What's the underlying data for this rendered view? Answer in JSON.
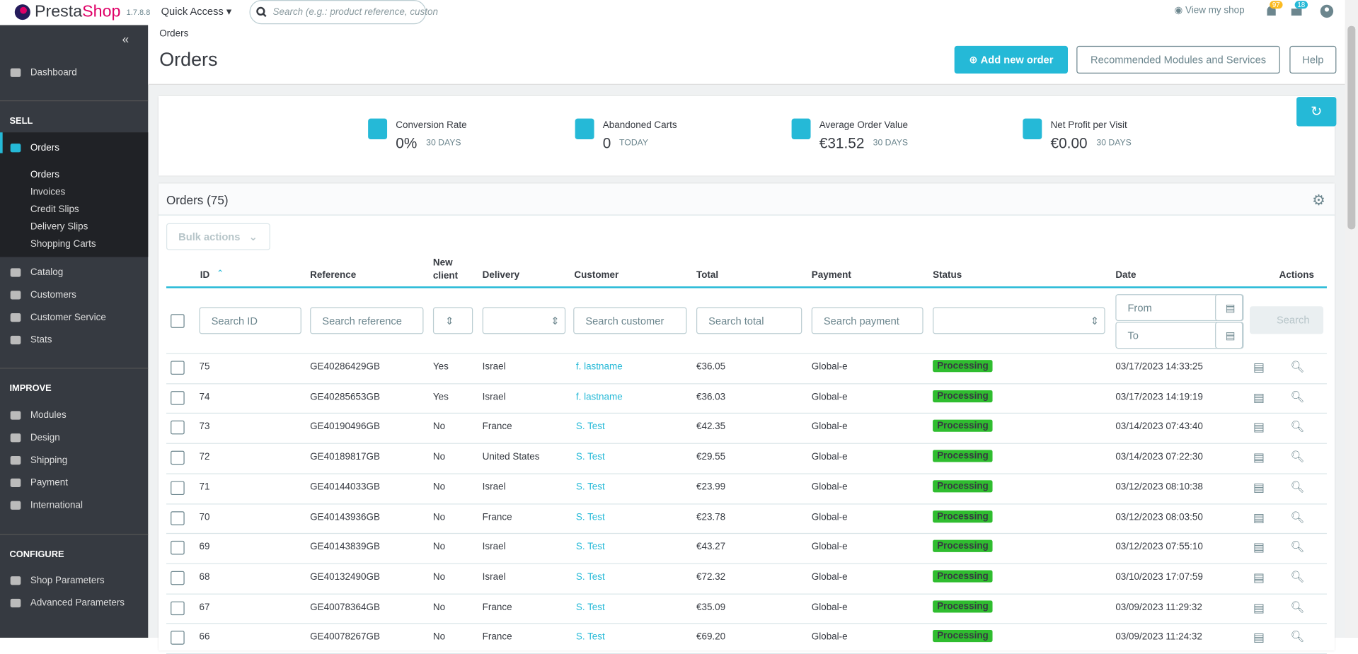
{
  "header": {
    "version": "1.7.8.8",
    "quick_access": "Quick Access",
    "search_placeholder": "Search (e.g.: product reference, custon",
    "view_shop": "View my shop",
    "notifications": "97",
    "messages": "18",
    "breadcrumb": "Orders",
    "title": "Orders",
    "buttons": [
      "Add new order",
      "Recommended Modules and Services",
      "Help"
    ]
  },
  "sidebar": {
    "items": [
      {
        "label": "Dashboard",
        "kind": "item"
      },
      {
        "label": "SELL",
        "kind": "section"
      },
      {
        "label": "Orders",
        "kind": "active"
      },
      {
        "label": "Orders",
        "kind": "sub"
      },
      {
        "label": "Invoices",
        "kind": "sub"
      },
      {
        "label": "Credit Slips",
        "kind": "sub"
      },
      {
        "label": "Delivery Slips",
        "kind": "sub"
      },
      {
        "label": "Shopping Carts",
        "kind": "sub"
      },
      {
        "label": "Catalog",
        "kind": "item"
      },
      {
        "label": "Customers",
        "kind": "item"
      },
      {
        "label": "Customer Service",
        "kind": "item"
      },
      {
        "label": "Stats",
        "kind": "item"
      },
      {
        "label": "IMPROVE",
        "kind": "section"
      },
      {
        "label": "Modules",
        "kind": "item"
      },
      {
        "label": "Design",
        "kind": "item"
      },
      {
        "label": "Shipping",
        "kind": "item"
      },
      {
        "label": "Payment",
        "kind": "item"
      },
      {
        "label": "International",
        "kind": "item"
      },
      {
        "label": "CONFIGURE",
        "kind": "section"
      },
      {
        "label": "Shop Parameters",
        "kind": "item"
      },
      {
        "label": "Advanced Parameters",
        "kind": "item"
      }
    ]
  },
  "kpis": [
    {
      "label": "Conversion Rate",
      "value": "0%",
      "period": "30 DAYS"
    },
    {
      "label": "Abandoned Carts",
      "value": "0",
      "period": "TODAY"
    },
    {
      "label": "Average Order Value",
      "value": "€31.52",
      "period": "30 DAYS"
    },
    {
      "label": "Net Profit per Visit",
      "value": "€0.00",
      "period": "30 DAYS"
    }
  ],
  "table": {
    "title": "Orders (75)",
    "bulk_actions": "Bulk actions",
    "columns": [
      "ID",
      "Reference",
      "New client",
      "Delivery",
      "Customer",
      "Total",
      "Payment",
      "Status",
      "Date",
      "Actions"
    ],
    "filters": [
      "Search ID",
      "Search reference",
      "Search customer",
      "Search total",
      "Search payment",
      "From",
      "To",
      "Search"
    ],
    "rows": [
      [
        "75",
        "GE40286429GB",
        "Yes",
        "Israel",
        "f. lastname",
        "€36.05",
        "Global-e",
        "Processing",
        "03/17/2023 14:33:25"
      ],
      [
        "74",
        "GE40285653GB",
        "Yes",
        "Israel",
        "f. lastname",
        "€36.03",
        "Global-e",
        "Processing",
        "03/17/2023 14:19:19"
      ],
      [
        "73",
        "GE40190496GB",
        "No",
        "France",
        "S. Test",
        "€42.35",
        "Global-e",
        "Processing",
        "03/14/2023 07:43:40"
      ],
      [
        "72",
        "GE40189817GB",
        "No",
        "United States",
        "S. Test",
        "€29.55",
        "Global-e",
        "Processing",
        "03/14/2023 07:22:30"
      ],
      [
        "71",
        "GE40144033GB",
        "No",
        "Israel",
        "S. Test",
        "€23.99",
        "Global-e",
        "Processing",
        "03/12/2023 08:10:38"
      ],
      [
        "70",
        "GE40143936GB",
        "No",
        "France",
        "S. Test",
        "€23.78",
        "Global-e",
        "Processing",
        "03/12/2023 08:03:50"
      ],
      [
        "69",
        "GE40143839GB",
        "No",
        "Israel",
        "S. Test",
        "€43.27",
        "Global-e",
        "Processing",
        "03/12/2023 07:55:10"
      ],
      [
        "68",
        "GE40132490GB",
        "No",
        "Israel",
        "S. Test",
        "€72.32",
        "Global-e",
        "Processing",
        "03/10/2023 17:07:59"
      ],
      [
        "67",
        "GE40078364GB",
        "No",
        "France",
        "S. Test",
        "€35.09",
        "Global-e",
        "Processing",
        "03/09/2023 11:29:32"
      ],
      [
        "66",
        "GE40078267GB",
        "No",
        "France",
        "S. Test",
        "€69.20",
        "Global-e",
        "Processing",
        "03/09/2023 11:24:32"
      ]
    ]
  }
}
